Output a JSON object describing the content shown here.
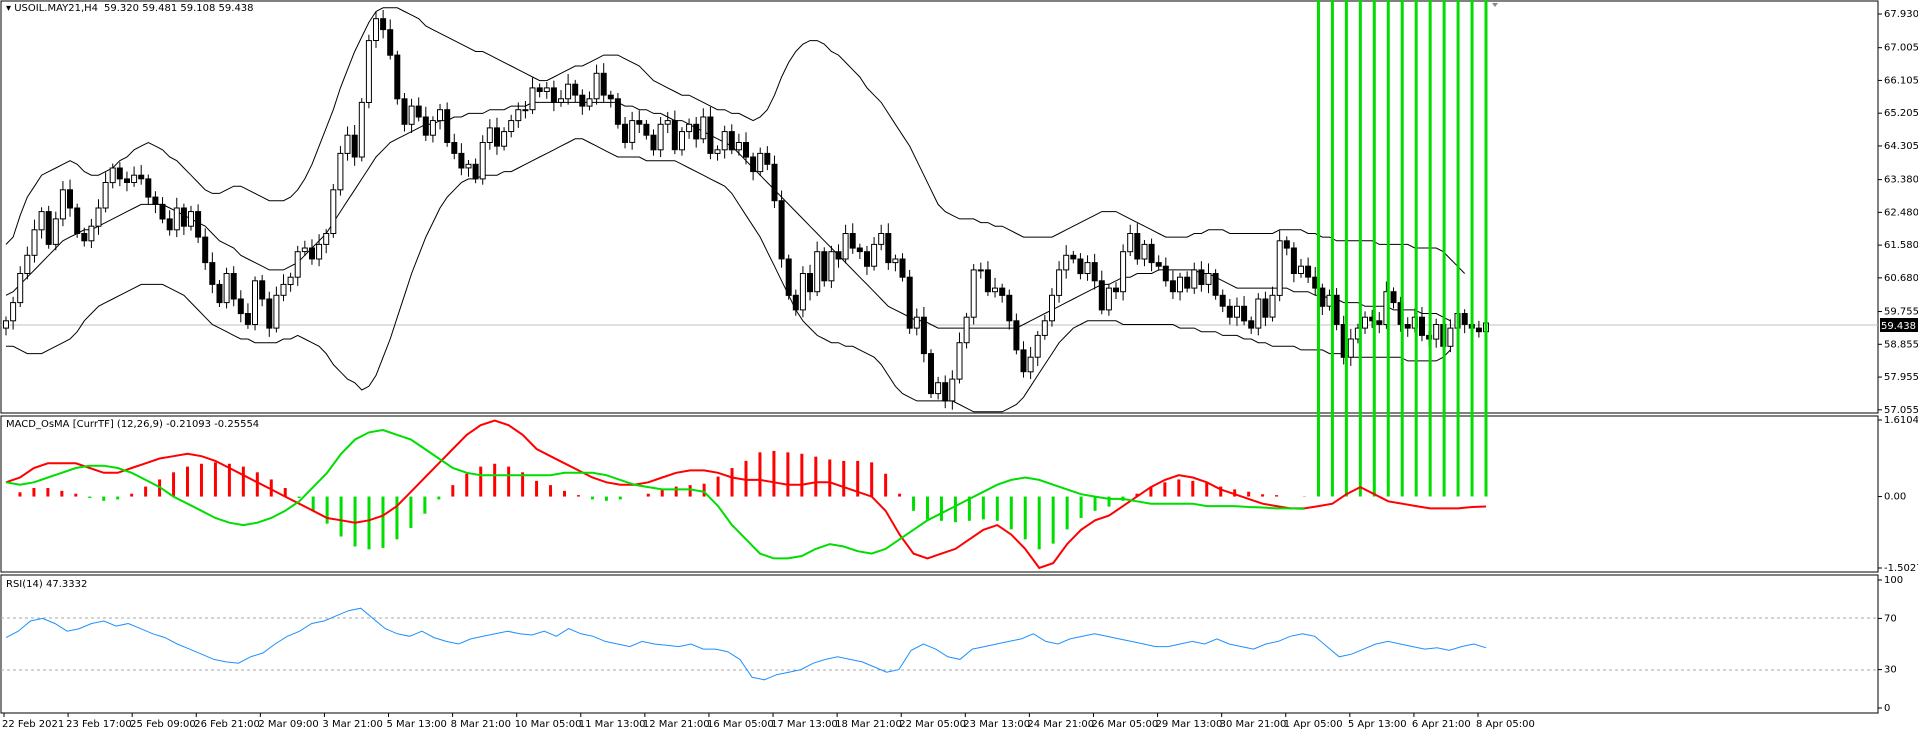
{
  "header": {
    "symbol_label": "USOIL.MAY21,H4",
    "ohlc_text": "59.320 59.481 59.108 59.438"
  },
  "macd": {
    "label": "MACD_OsMA [CurrTF] (12,26,9) -0.21093 -0.25554"
  },
  "rsi": {
    "label": "RSI(14) 47.3332"
  },
  "current_price_badge": "59.438",
  "colors": {
    "price_line": "#000000",
    "bollinger": "#000000",
    "macd_line": "#ff0000",
    "signal_line": "#00dd00",
    "osma_positive": "#ff0000",
    "osma_negative": "#00dd00",
    "rsi_line": "#1e90ff",
    "badge_bg": "#000000",
    "grid": "#c0c0c0"
  },
  "chart_data": [
    {
      "type": "candlestick",
      "title": "USOIL.MAY21,H4",
      "y_ticks": [
        "67.930",
        "67.005",
        "66.105",
        "65.205",
        "64.305",
        "63.380",
        "62.480",
        "61.580",
        "60.680",
        "59.755",
        "58.855",
        "57.955",
        "57.055"
      ],
      "ylim": [
        57.05,
        67.93
      ],
      "x_ticks": [
        "22 Feb 2021",
        "23 Feb 17:00",
        "25 Feb 09:00",
        "26 Feb 21:00",
        "2 Mar 09:00",
        "3 Mar 21:00",
        "5 Mar 13:00",
        "8 Mar 21:00",
        "10 Mar 05:00",
        "11 Mar 13:00",
        "12 Mar 21:00",
        "16 Mar 05:00",
        "17 Mar 13:00",
        "18 Mar 21:00",
        "22 Mar 05:00",
        "23 Mar 13:00",
        "24 Mar 21:00",
        "26 Mar 05:00",
        "29 Mar 13:00",
        "30 Mar 21:00",
        "1 Apr 05:00",
        "5 Apr 13:00",
        "6 Apr 21:00",
        "8 Apr 05:00"
      ],
      "close": [
        59.5,
        60.0,
        60.8,
        61.3,
        62.0,
        62.5,
        61.6,
        62.3,
        63.1,
        62.6,
        61.9,
        61.7,
        62.1,
        62.6,
        63.3,
        63.7,
        63.4,
        63.3,
        63.5,
        63.4,
        62.9,
        62.7,
        62.3,
        62.0,
        62.6,
        62.1,
        62.5,
        61.8,
        61.1,
        60.5,
        60.0,
        60.8,
        60.1,
        59.7,
        59.4,
        60.6,
        60.1,
        59.3,
        60.2,
        60.5,
        60.7,
        61.4,
        61.5,
        61.2,
        61.6,
        61.9,
        63.1,
        64.1,
        64.6,
        64.0,
        65.5,
        67.2,
        67.8,
        67.5,
        66.8,
        65.6,
        64.9,
        65.4,
        65.1,
        64.6,
        65.0,
        65.3,
        64.4,
        64.1,
        63.7,
        63.8,
        63.4,
        64.4,
        64.8,
        64.3,
        64.7,
        65.0,
        65.3,
        65.3,
        65.9,
        65.8,
        65.9,
        65.5,
        65.6,
        66.0,
        65.7,
        65.4,
        65.6,
        66.3,
        65.7,
        65.6,
        64.9,
        64.4,
        65.0,
        64.9,
        64.6,
        64.2,
        64.9,
        65.0,
        64.2,
        64.7,
        64.9,
        64.5,
        65.1,
        64.1,
        64.2,
        64.7,
        64.2,
        64.4,
        64.0,
        63.6,
        64.1,
        63.8,
        62.8,
        61.2,
        60.2,
        59.8,
        60.8,
        60.3,
        61.4,
        60.6,
        61.4,
        61.2,
        61.9,
        61.5,
        61.4,
        61.0,
        61.6,
        61.9,
        61.1,
        61.2,
        60.7,
        59.3,
        59.6,
        58.6,
        57.5,
        57.8,
        57.3,
        57.9,
        58.9,
        59.6,
        60.9,
        60.9,
        60.3,
        60.4,
        60.2,
        59.5,
        58.7,
        58.1,
        58.5,
        59.1,
        59.5,
        60.2,
        60.9,
        61.3,
        61.2,
        60.8,
        61.1,
        60.6,
        59.8,
        60.4,
        60.3,
        61.4,
        61.9,
        61.2,
        61.6,
        61.1,
        61.0,
        60.6,
        60.3,
        60.7,
        60.4,
        60.9,
        60.5,
        60.8,
        60.2,
        59.9,
        59.6,
        59.9,
        59.5,
        59.3,
        60.1,
        59.6,
        60.2,
        61.7,
        61.5,
        60.8,
        61.0,
        60.7,
        60.4,
        59.9,
        60.2,
        59.4,
        58.5,
        59.0,
        59.3,
        59.6,
        59.5,
        59.4,
        60.3,
        60.0,
        59.4,
        59.3,
        59.6,
        59.1,
        59.0,
        59.4,
        58.8,
        59.3,
        59.7,
        59.4,
        59.3,
        59.2,
        59.44
      ],
      "bollinger_upper": [
        61.6,
        61.8,
        62.4,
        62.9,
        63.2,
        63.5,
        63.6,
        63.7,
        63.8,
        63.9,
        63.8,
        63.6,
        63.5,
        63.5,
        63.6,
        63.7,
        63.9,
        64.0,
        64.2,
        64.3,
        64.4,
        64.3,
        64.2,
        64.0,
        63.9,
        63.7,
        63.5,
        63.3,
        63.1,
        63.0,
        63.0,
        63.1,
        63.2,
        63.2,
        63.1,
        63.0,
        62.9,
        62.8,
        62.8,
        62.8,
        62.9,
        63.1,
        63.4,
        63.8,
        64.3,
        64.8,
        65.3,
        65.9,
        66.4,
        66.9,
        67.3,
        67.7,
        68.0,
        68.1,
        68.1,
        68.1,
        68.0,
        67.9,
        67.8,
        67.6,
        67.5,
        67.4,
        67.3,
        67.2,
        67.1,
        67.0,
        66.9,
        66.9,
        66.8,
        66.7,
        66.6,
        66.5,
        66.4,
        66.3,
        66.2,
        66.1,
        66.1,
        66.2,
        66.3,
        66.4,
        66.5,
        66.5,
        66.6,
        66.7,
        66.8,
        66.8,
        66.8,
        66.7,
        66.6,
        66.5,
        66.3,
        66.1,
        66.0,
        65.9,
        65.8,
        65.7,
        65.7,
        65.6,
        65.5,
        65.4,
        65.3,
        65.3,
        65.2,
        65.2,
        65.1,
        65.0,
        65.1,
        65.3,
        65.7,
        66.2,
        66.6,
        66.9,
        67.1,
        67.2,
        67.2,
        67.1,
        66.9,
        66.8,
        66.6,
        66.4,
        66.2,
        65.9,
        65.7,
        65.5,
        65.2,
        64.9,
        64.6,
        64.3,
        63.9,
        63.5,
        63.1,
        62.7,
        62.5,
        62.4,
        62.3,
        62.3,
        62.3,
        62.2,
        62.2,
        62.1,
        62.1,
        62.0,
        61.9,
        61.8,
        61.8,
        61.8,
        61.8,
        61.8,
        61.9,
        62.0,
        62.1,
        62.2,
        62.3,
        62.4,
        62.5,
        62.5,
        62.5,
        62.4,
        62.3,
        62.2,
        62.1,
        62.0,
        61.9,
        61.8,
        61.8,
        61.8,
        61.8,
        61.9,
        61.9,
        62.0,
        62.0,
        62.0,
        61.9,
        61.9,
        61.9,
        61.9,
        61.9,
        61.9,
        61.9,
        62.0,
        62.0,
        62.0,
        62.0,
        61.9,
        61.9,
        61.8,
        61.8,
        61.7,
        61.7,
        61.7,
        61.7,
        61.7,
        61.7,
        61.6,
        61.6,
        61.6,
        61.6,
        61.6,
        61.5,
        61.5,
        61.5,
        61.5,
        61.4,
        61.2,
        61.0,
        60.8
      ],
      "bollinger_mid": [
        60.2,
        60.3,
        60.5,
        60.7,
        60.9,
        61.1,
        61.3,
        61.5,
        61.7,
        61.8,
        61.9,
        62.0,
        62.0,
        62.1,
        62.2,
        62.3,
        62.4,
        62.5,
        62.6,
        62.7,
        62.7,
        62.7,
        62.7,
        62.6,
        62.5,
        62.4,
        62.3,
        62.2,
        62.1,
        61.9,
        61.7,
        61.6,
        61.5,
        61.3,
        61.2,
        61.1,
        61.0,
        60.9,
        60.9,
        60.9,
        61.0,
        61.1,
        61.3,
        61.5,
        61.7,
        61.9,
        62.2,
        62.5,
        62.8,
        63.1,
        63.4,
        63.7,
        64.0,
        64.2,
        64.4,
        64.5,
        64.6,
        64.7,
        64.8,
        64.9,
        64.9,
        65.0,
        65.0,
        65.1,
        65.1,
        65.2,
        65.2,
        65.2,
        65.3,
        65.3,
        65.3,
        65.4,
        65.4,
        65.4,
        65.5,
        65.5,
        65.5,
        65.5,
        65.5,
        65.5,
        65.5,
        65.5,
        65.5,
        65.5,
        65.5,
        65.5,
        65.5,
        65.4,
        65.4,
        65.3,
        65.3,
        65.2,
        65.2,
        65.1,
        65.0,
        65.0,
        64.9,
        64.8,
        64.7,
        64.6,
        64.5,
        64.4,
        64.3,
        64.1,
        63.9,
        63.7,
        63.5,
        63.3,
        63.1,
        62.9,
        62.7,
        62.5,
        62.3,
        62.1,
        61.9,
        61.7,
        61.5,
        61.3,
        61.1,
        60.9,
        60.7,
        60.5,
        60.3,
        60.1,
        59.9,
        59.8,
        59.7,
        59.6,
        59.5,
        59.5,
        59.4,
        59.3,
        59.3,
        59.3,
        59.3,
        59.3,
        59.3,
        59.3,
        59.3,
        59.3,
        59.3,
        59.3,
        59.3,
        59.4,
        59.5,
        59.6,
        59.7,
        59.8,
        59.9,
        60.0,
        60.1,
        60.2,
        60.3,
        60.4,
        60.5,
        60.5,
        60.6,
        60.7,
        60.7,
        60.8,
        60.8,
        60.8,
        60.9,
        60.9,
        60.9,
        60.9,
        60.9,
        60.9,
        60.8,
        60.8,
        60.7,
        60.6,
        60.5,
        60.4,
        60.4,
        60.4,
        60.4,
        60.4,
        60.4,
        60.4,
        60.4,
        60.3,
        60.3,
        60.3,
        60.2,
        60.2,
        60.1,
        60.1,
        60.0,
        60.0,
        60.0,
        59.9,
        59.9,
        59.9,
        59.9,
        59.8,
        59.8,
        59.8,
        59.8,
        59.7,
        59.7,
        59.7,
        59.6,
        59.5
      ],
      "bollinger_lower": [
        58.8,
        58.8,
        58.7,
        58.6,
        58.6,
        58.6,
        58.7,
        58.8,
        58.9,
        59.0,
        59.2,
        59.5,
        59.7,
        59.9,
        60.0,
        60.1,
        60.2,
        60.3,
        60.4,
        60.5,
        60.5,
        60.5,
        60.5,
        60.4,
        60.3,
        60.2,
        60.0,
        59.8,
        59.6,
        59.4,
        59.3,
        59.2,
        59.1,
        59.0,
        59.0,
        58.9,
        58.9,
        58.9,
        58.9,
        59.0,
        59.0,
        59.1,
        59.0,
        58.9,
        58.8,
        58.6,
        58.3,
        58.1,
        57.9,
        57.8,
        57.6,
        57.7,
        58.0,
        58.5,
        59.0,
        59.6,
        60.2,
        60.8,
        61.3,
        61.8,
        62.2,
        62.6,
        62.9,
        63.1,
        63.3,
        63.4,
        63.4,
        63.5,
        63.5,
        63.5,
        63.6,
        63.6,
        63.7,
        63.8,
        63.9,
        64.0,
        64.1,
        64.2,
        64.3,
        64.4,
        64.5,
        64.5,
        64.4,
        64.3,
        64.2,
        64.1,
        64.0,
        64.0,
        64.0,
        64.0,
        63.9,
        63.9,
        63.9,
        63.9,
        63.9,
        63.8,
        63.7,
        63.6,
        63.5,
        63.4,
        63.3,
        63.2,
        63.0,
        62.7,
        62.4,
        62.1,
        61.8,
        61.4,
        61.0,
        60.6,
        60.2,
        59.8,
        59.5,
        59.3,
        59.1,
        59.0,
        58.9,
        58.9,
        58.8,
        58.8,
        58.7,
        58.6,
        58.5,
        58.3,
        58.0,
        57.7,
        57.5,
        57.4,
        57.3,
        57.3,
        57.3,
        57.3,
        57.3,
        57.3,
        57.2,
        57.1,
        57.0,
        57.0,
        57.0,
        57.0,
        57.0,
        57.1,
        57.2,
        57.4,
        57.7,
        58.0,
        58.3,
        58.6,
        58.9,
        59.1,
        59.3,
        59.4,
        59.5,
        59.5,
        59.5,
        59.5,
        59.5,
        59.4,
        59.4,
        59.4,
        59.4,
        59.4,
        59.4,
        59.4,
        59.4,
        59.3,
        59.3,
        59.3,
        59.2,
        59.2,
        59.2,
        59.1,
        59.1,
        59.1,
        59.0,
        59.0,
        58.9,
        58.9,
        58.8,
        58.8,
        58.8,
        58.8,
        58.7,
        58.7,
        58.7,
        58.7,
        58.6,
        58.6,
        58.6,
        58.5,
        58.5,
        58.5,
        58.5,
        58.5,
        58.5,
        58.5,
        58.5,
        58.4,
        58.4,
        58.4,
        58.4,
        58.4,
        58.5,
        58.7
      ]
    },
    {
      "type": "bar",
      "title": "MACD_OsMA [CurrTF] (12,26,9) -0.21093 -0.25554",
      "y_ticks": [
        "1.6104",
        "0.00",
        "-1.5027"
      ],
      "ylim": [
        -1.5027,
        1.6104
      ],
      "series": [
        {
          "name": "macd",
          "values": [
            0.3,
            0.4,
            0.6,
            0.7,
            0.7,
            0.7,
            0.6,
            0.5,
            0.5,
            0.6,
            0.7,
            0.8,
            0.85,
            0.9,
            0.85,
            0.75,
            0.6,
            0.45,
            0.3,
            0.15,
            0.0,
            -0.15,
            -0.3,
            -0.45,
            -0.5,
            -0.55,
            -0.5,
            -0.4,
            -0.2,
            0.1,
            0.4,
            0.7,
            1.0,
            1.3,
            1.5,
            1.6,
            1.5,
            1.3,
            1.0,
            0.85,
            0.7,
            0.55,
            0.4,
            0.3,
            0.25,
            0.25,
            0.3,
            0.4,
            0.5,
            0.55,
            0.55,
            0.5,
            0.4,
            0.35,
            0.35,
            0.3,
            0.25,
            0.25,
            0.3,
            0.3,
            0.2,
            0.1,
            0.0,
            -0.3,
            -0.8,
            -1.2,
            -1.3,
            -1.2,
            -1.1,
            -0.9,
            -0.7,
            -0.6,
            -0.8,
            -1.1,
            -1.5,
            -1.4,
            -1.0,
            -0.7,
            -0.5,
            -0.4,
            -0.2,
            0.0,
            0.2,
            0.35,
            0.45,
            0.4,
            0.3,
            0.15,
            0.05,
            -0.05,
            -0.15,
            -0.2,
            -0.25,
            -0.25,
            -0.2,
            -0.15,
            0.05,
            0.2,
            0.05,
            -0.1,
            -0.15,
            -0.2,
            -0.25,
            -0.25,
            -0.25,
            -0.22,
            -0.21
          ]
        },
        {
          "name": "signal",
          "values": [
            0.3,
            0.25,
            0.3,
            0.4,
            0.5,
            0.6,
            0.65,
            0.65,
            0.6,
            0.5,
            0.35,
            0.2,
            0.0,
            -0.15,
            -0.3,
            -0.45,
            -0.55,
            -0.6,
            -0.55,
            -0.45,
            -0.3,
            -0.1,
            0.2,
            0.5,
            0.9,
            1.2,
            1.35,
            1.4,
            1.3,
            1.2,
            1.0,
            0.8,
            0.6,
            0.5,
            0.45,
            0.45,
            0.45,
            0.45,
            0.45,
            0.45,
            0.5,
            0.5,
            0.5,
            0.45,
            0.35,
            0.25,
            0.2,
            0.15,
            0.15,
            0.15,
            0.1,
            -0.2,
            -0.6,
            -0.9,
            -1.2,
            -1.3,
            -1.3,
            -1.25,
            -1.1,
            -1.0,
            -1.05,
            -1.15,
            -1.2,
            -1.1,
            -0.9,
            -0.7,
            -0.5,
            -0.35,
            -0.2,
            -0.05,
            0.1,
            0.25,
            0.35,
            0.4,
            0.35,
            0.25,
            0.15,
            0.05,
            0.0,
            -0.05,
            -0.05,
            -0.1,
            -0.15,
            -0.15,
            -0.15,
            -0.15,
            -0.2,
            -0.2,
            -0.2,
            -0.22,
            -0.23,
            -0.25,
            -0.25,
            -0.26
          ]
        }
      ]
    },
    {
      "type": "line",
      "title": "RSI(14) 47.3332",
      "y_ticks": [
        "100",
        "70",
        "30",
        "0"
      ],
      "ylim": [
        0,
        100
      ],
      "values": [
        55,
        60,
        68,
        70,
        66,
        60,
        62,
        66,
        68,
        64,
        66,
        62,
        58,
        55,
        50,
        46,
        42,
        38,
        36,
        35,
        40,
        43,
        50,
        56,
        60,
        66,
        68,
        72,
        76,
        78,
        70,
        62,
        58,
        56,
        60,
        55,
        52,
        50,
        54,
        56,
        58,
        60,
        58,
        57,
        60,
        56,
        62,
        58,
        56,
        52,
        50,
        48,
        52,
        50,
        49,
        48,
        50,
        46,
        46,
        44,
        38,
        24,
        22,
        26,
        28,
        30,
        35,
        38,
        40,
        38,
        36,
        32,
        28,
        30,
        45,
        50,
        46,
        40,
        38,
        46,
        48,
        50,
        52,
        54,
        58,
        52,
        50,
        54,
        56,
        58,
        56,
        54,
        52,
        50,
        48,
        48,
        50,
        52,
        50,
        54,
        50,
        48,
        46,
        50,
        52,
        56,
        58,
        56,
        48,
        40,
        42,
        46,
        50,
        52,
        50,
        48,
        46,
        47,
        45,
        48,
        50,
        47
      ]
    }
  ]
}
